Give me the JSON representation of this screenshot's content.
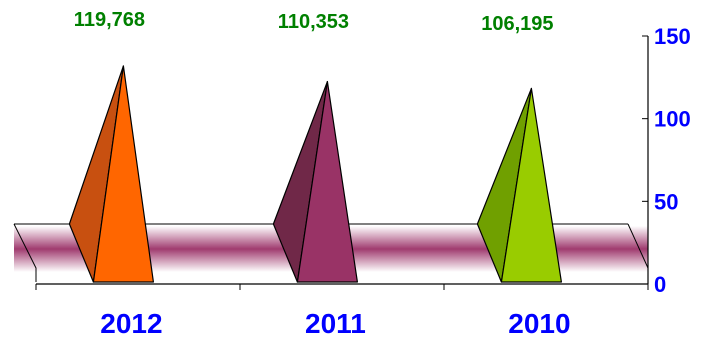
{
  "chart_data": {
    "type": "bar",
    "bar_shape": "pyramid",
    "categories": [
      "2012",
      "2011",
      "2010"
    ],
    "values": [
      119768,
      110353,
      106195
    ],
    "value_labels": [
      "119,768",
      "110,353",
      "106,195"
    ],
    "ylim": [
      0,
      150
    ],
    "y_ticks": [
      0,
      50,
      100,
      150
    ],
    "y_axis_side": "right",
    "grid": false,
    "legend": "none",
    "colors": {
      "bars": [
        "#FF6600",
        "#993366",
        "#99CC00"
      ],
      "bars_dark": [
        "#C85010",
        "#702848",
        "#70A000"
      ],
      "data_labels": "#008000",
      "axis_labels": "#0000FF",
      "floor_band": "#A03B6F"
    }
  }
}
